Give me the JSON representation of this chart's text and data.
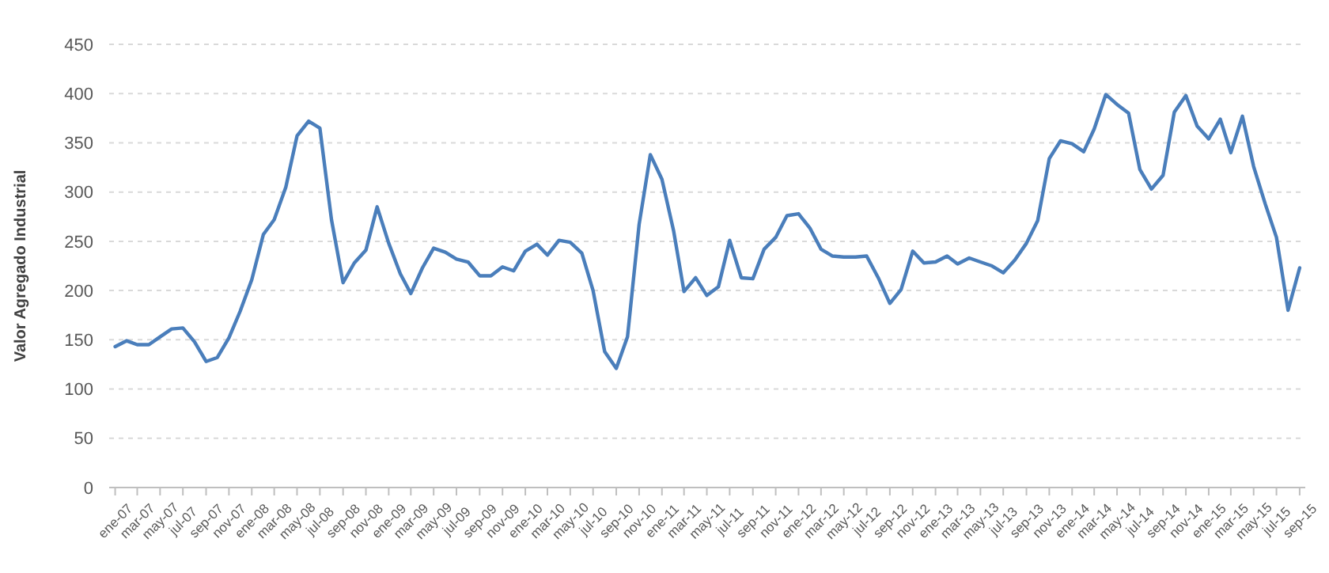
{
  "chart_data": {
    "type": "line",
    "ylabel": "Valor Agregado Industrial",
    "x": [
      "2007-01",
      "2007-02",
      "2007-03",
      "2007-04",
      "2007-05",
      "2007-06",
      "2007-07",
      "2007-08",
      "2007-09",
      "2007-10",
      "2007-11",
      "2007-12",
      "2008-01",
      "2008-02",
      "2008-03",
      "2008-04",
      "2008-05",
      "2008-06",
      "2008-07",
      "2008-08",
      "2008-09",
      "2008-10",
      "2008-11",
      "2008-12",
      "2009-01",
      "2009-02",
      "2009-03",
      "2009-04",
      "2009-05",
      "2009-06",
      "2009-07",
      "2009-08",
      "2009-09",
      "2009-10",
      "2009-11",
      "2009-12",
      "2010-01",
      "2010-02",
      "2010-03",
      "2010-04",
      "2010-05",
      "2010-06",
      "2010-07",
      "2010-08",
      "2010-09",
      "2010-10",
      "2010-11",
      "2010-12",
      "2011-01",
      "2011-02",
      "2011-03",
      "2011-04",
      "2011-05",
      "2011-06",
      "2011-07",
      "2011-08",
      "2011-09",
      "2011-10",
      "2011-11",
      "2011-12",
      "2012-01",
      "2012-02",
      "2012-03",
      "2012-04",
      "2012-05",
      "2012-06",
      "2012-07",
      "2012-08",
      "2012-09",
      "2012-10",
      "2012-11",
      "2012-12",
      "2013-01",
      "2013-02",
      "2013-03",
      "2013-04",
      "2013-05",
      "2013-06",
      "2013-07",
      "2013-08",
      "2013-09",
      "2013-10",
      "2013-11",
      "2013-12",
      "2014-01",
      "2014-02",
      "2014-03",
      "2014-04",
      "2014-05",
      "2014-06",
      "2014-07",
      "2014-08",
      "2014-09",
      "2014-10",
      "2014-11",
      "2014-12",
      "2015-01",
      "2015-02",
      "2015-03",
      "2015-04",
      "2015-05",
      "2015-06",
      "2015-07",
      "2015-08",
      "2015-09"
    ],
    "xlim": [
      "2006-12-16",
      "2015-09-16"
    ],
    "xticks": [
      {
        "value": "2007-01",
        "label": "ene-07"
      },
      {
        "value": "2007-03",
        "label": "mar-07"
      },
      {
        "value": "2007-05",
        "label": "may-07"
      },
      {
        "value": "2007-07",
        "label": "jul-07"
      },
      {
        "value": "2007-09",
        "label": "sep-07"
      },
      {
        "value": "2007-11",
        "label": "nov-07"
      },
      {
        "value": "2008-01",
        "label": "ene-08"
      },
      {
        "value": "2008-03",
        "label": "mar-08"
      },
      {
        "value": "2008-05",
        "label": "may-08"
      },
      {
        "value": "2008-07",
        "label": "jul-08"
      },
      {
        "value": "2008-09",
        "label": "sep-08"
      },
      {
        "value": "2008-11",
        "label": "nov-08"
      },
      {
        "value": "2009-01",
        "label": "ene-09"
      },
      {
        "value": "2009-03",
        "label": "mar-09"
      },
      {
        "value": "2009-05",
        "label": "may-09"
      },
      {
        "value": "2009-07",
        "label": "jul-09"
      },
      {
        "value": "2009-09",
        "label": "sep-09"
      },
      {
        "value": "2009-11",
        "label": "nov-09"
      },
      {
        "value": "2010-01",
        "label": "ene-10"
      },
      {
        "value": "2010-03",
        "label": "mar-10"
      },
      {
        "value": "2010-05",
        "label": "may-10"
      },
      {
        "value": "2010-07",
        "label": "jul-10"
      },
      {
        "value": "2010-09",
        "label": "sep-10"
      },
      {
        "value": "2010-11",
        "label": "nov-10"
      },
      {
        "value": "2011-01",
        "label": "ene-11"
      },
      {
        "value": "2011-03",
        "label": "mar-11"
      },
      {
        "value": "2011-05",
        "label": "may-11"
      },
      {
        "value": "2011-07",
        "label": "jul-11"
      },
      {
        "value": "2011-09",
        "label": "sep-11"
      },
      {
        "value": "2011-11",
        "label": "nov-11"
      },
      {
        "value": "2012-01",
        "label": "ene-12"
      },
      {
        "value": "2012-03",
        "label": "mar-12"
      },
      {
        "value": "2012-05",
        "label": "may-12"
      },
      {
        "value": "2012-07",
        "label": "jul-12"
      },
      {
        "value": "2012-09",
        "label": "sep-12"
      },
      {
        "value": "2012-11",
        "label": "nov-12"
      },
      {
        "value": "2013-01",
        "label": "ene-13"
      },
      {
        "value": "2013-03",
        "label": "mar-13"
      },
      {
        "value": "2013-05",
        "label": "may-13"
      },
      {
        "value": "2013-07",
        "label": "jul-13"
      },
      {
        "value": "2013-09",
        "label": "sep-13"
      },
      {
        "value": "2013-11",
        "label": "nov-13"
      },
      {
        "value": "2014-01",
        "label": "ene-14"
      },
      {
        "value": "2014-03",
        "label": "mar-14"
      },
      {
        "value": "2014-05",
        "label": "may-14"
      },
      {
        "value": "2014-07",
        "label": "jul-14"
      },
      {
        "value": "2014-09",
        "label": "sep-14"
      },
      {
        "value": "2014-11",
        "label": "nov-14"
      },
      {
        "value": "2015-01",
        "label": "ene-15"
      },
      {
        "value": "2015-03",
        "label": "mar-15"
      },
      {
        "value": "2015-05",
        "label": "may-15"
      },
      {
        "value": "2015-07",
        "label": "jul-15"
      },
      {
        "value": "2015-09",
        "label": "sep-15"
      }
    ],
    "series": [
      {
        "color": "#4a7ebb",
        "values": [
          143,
          149,
          145,
          145,
          153,
          161,
          162,
          148,
          128,
          132,
          152,
          179,
          211,
          257,
          272,
          305,
          357,
          372,
          365,
          272,
          208,
          228,
          241,
          285,
          248,
          217,
          197,
          223,
          243,
          239,
          232,
          229,
          215,
          215,
          224,
          220,
          240,
          247,
          236,
          251,
          249,
          238,
          200,
          138,
          121,
          153,
          267,
          338,
          313,
          261,
          199,
          213,
          195,
          204,
          251,
          213,
          212,
          242,
          254,
          276,
          278,
          263,
          242,
          235,
          234,
          234,
          235,
          213,
          187,
          201,
          240,
          228,
          229,
          235,
          227,
          233,
          229,
          225,
          218,
          231,
          248,
          271,
          334,
          352,
          349,
          341,
          364,
          399,
          389,
          380,
          323,
          303,
          317,
          381,
          398,
          367,
          354,
          374,
          340,
          377,
          326,
          288,
          254,
          180,
          223
        ]
      }
    ],
    "ylim": [
      0,
      450
    ],
    "yticks": [
      0,
      50,
      100,
      150,
      200,
      250,
      300,
      350,
      400,
      450
    ],
    "grid": "y",
    "marker": "none",
    "line_style": "solid"
  }
}
